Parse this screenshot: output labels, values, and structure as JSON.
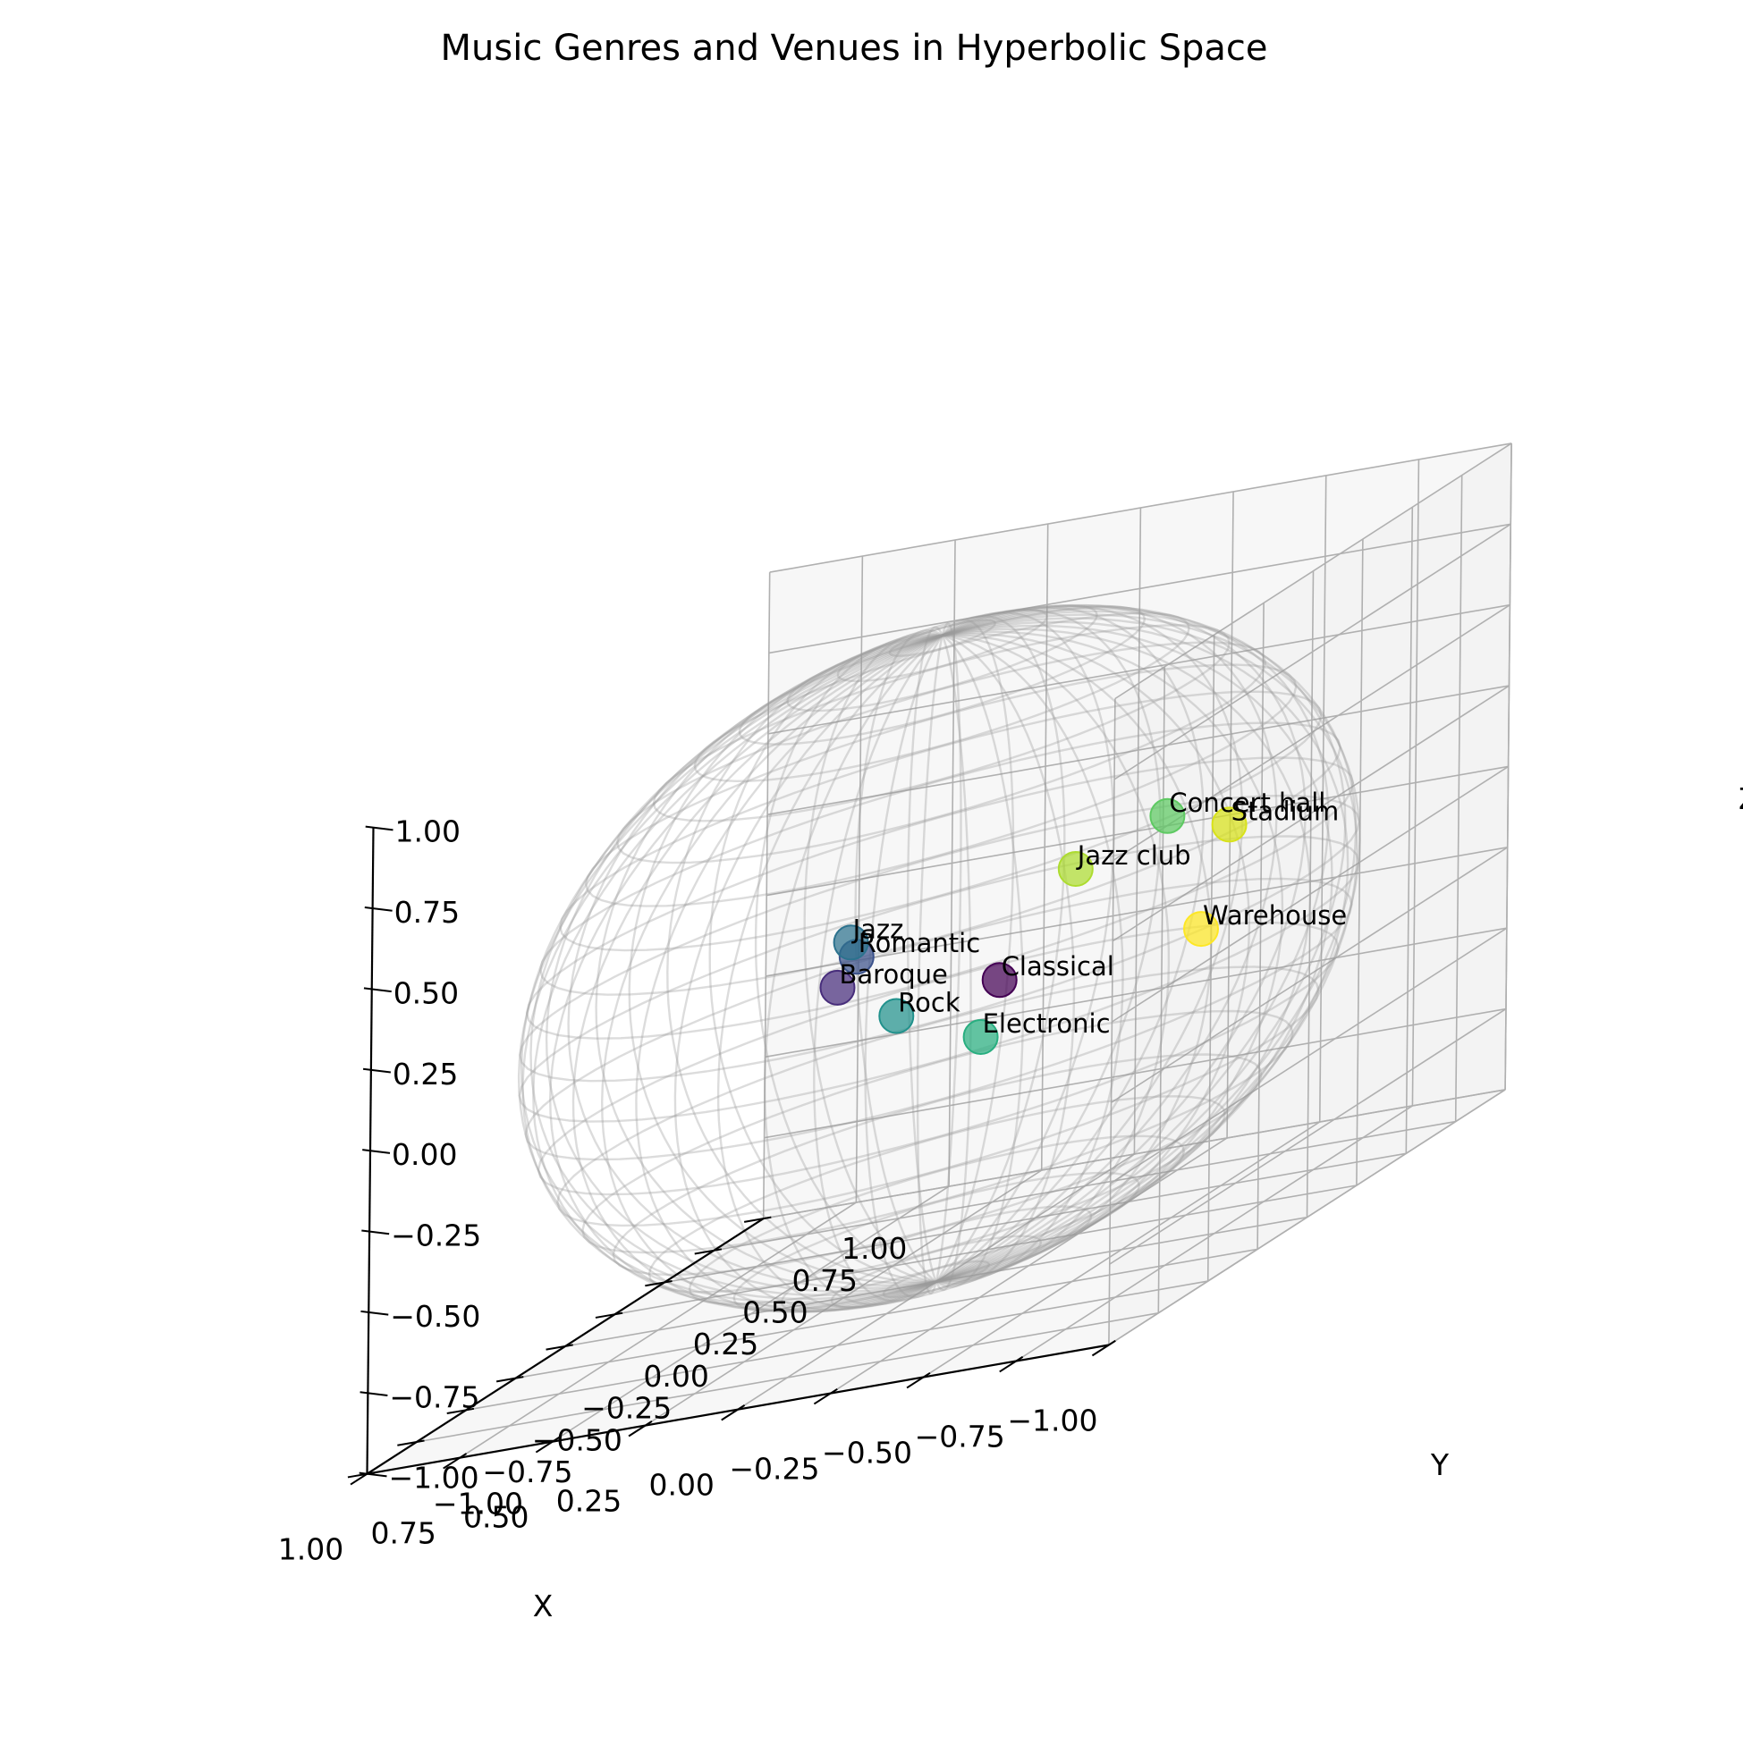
{
  "chart_data": {
    "type": "scatter",
    "projection": "3d",
    "title": "Music Genres and Venues in Hyperbolic Space",
    "xlabel": "X",
    "ylabel": "Y",
    "zlabel": "Z",
    "xlim": [
      -1,
      1
    ],
    "ylim": [
      -1,
      1
    ],
    "zlim": [
      -1,
      1
    ],
    "grid": true,
    "background_surface": "unit sphere wireframe",
    "xticks": [
      "−1.00",
      "−0.75",
      "−0.50",
      "−0.25",
      "0.00",
      "0.25",
      "0.50",
      "0.75",
      "1.00"
    ],
    "yticks": [
      "−1.00",
      "−0.75",
      "−0.50",
      "−0.25",
      "0.00",
      "0.25",
      "0.50",
      "0.75",
      "1.00"
    ],
    "zticks": [
      "−1.00",
      "−0.75",
      "−0.50",
      "−0.25",
      "0.00",
      "0.25",
      "0.50",
      "0.75",
      "1.00"
    ],
    "points": [
      {
        "label": "Classical",
        "x": 0.06,
        "y": 0.42,
        "z": -0.22,
        "color": "#440154"
      },
      {
        "label": "Baroque",
        "x": 0.54,
        "y": 0.5,
        "z": -0.18,
        "color": "#472d7b"
      },
      {
        "label": "Romantic",
        "x": 0.5,
        "y": 0.52,
        "z": -0.1,
        "color": "#3b528b"
      },
      {
        "label": "Jazz",
        "x": 0.51,
        "y": 0.51,
        "z": -0.05,
        "color": "#2c728e"
      },
      {
        "label": "Rock",
        "x": 0.29,
        "y": 0.33,
        "z": -0.25,
        "color": "#21918c"
      },
      {
        "label": "Electronic",
        "x": -0.05,
        "y": 0.12,
        "z": -0.3,
        "color": "#28ae80"
      },
      {
        "label": "Concert hall",
        "x": -0.32,
        "y": 0.55,
        "z": 0.16,
        "color": "#5ec962"
      },
      {
        "label": "Jazz club",
        "x": -0.1,
        "y": 0.5,
        "z": 0.06,
        "color": "#addc30"
      },
      {
        "label": "Stadium",
        "x": -0.45,
        "y": 0.62,
        "z": 0.08,
        "color": "#d8e219"
      },
      {
        "label": "Warehouse",
        "x": -0.52,
        "y": 0.35,
        "z": -0.15,
        "color": "#fde725"
      }
    ]
  }
}
